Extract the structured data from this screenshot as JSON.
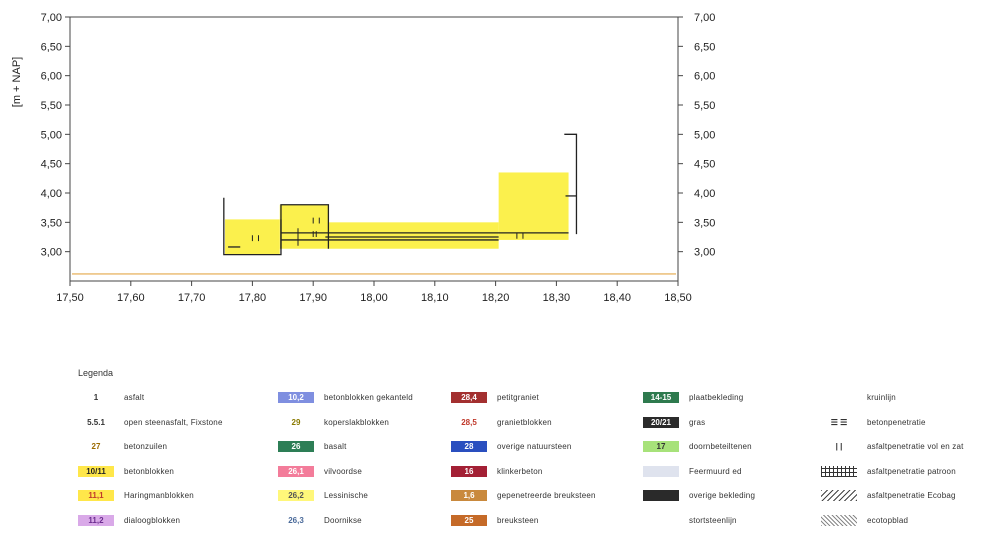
{
  "chart_data": {
    "type": "line",
    "title": "",
    "xlabel": "",
    "ylabel": "[m + NAP]",
    "xlim": [
      17.5,
      18.5
    ],
    "ylim": [
      2.5,
      7.0
    ],
    "x_ticks": [
      "17,50",
      "17,60",
      "17,70",
      "17,80",
      "17,90",
      "18,00",
      "18,10",
      "18,20",
      "18,30",
      "18,40",
      "18,50"
    ],
    "y_ticks_left": [
      "7,00",
      "6,50",
      "6,00",
      "5,50",
      "5,00",
      "4,50",
      "4,00",
      "3,50",
      "3,00"
    ],
    "y_ticks_right": [
      "7,00",
      "6,50",
      "6,00",
      "5,50",
      "5,00",
      "4,50",
      "4,00",
      "3,50",
      "3,00"
    ],
    "yellow_regions": [
      {
        "x": [
          17.755,
          17.845
        ],
        "y": [
          2.95,
          3.55
        ]
      },
      {
        "x": [
          17.845,
          17.925
        ],
        "y": [
          3.05,
          3.8
        ]
      },
      {
        "x": [
          17.925,
          18.205
        ],
        "y": [
          3.05,
          3.5
        ]
      },
      {
        "x": [
          18.205,
          18.32
        ],
        "y": [
          3.2,
          4.35
        ]
      }
    ],
    "profile_lines": [
      {
        "x": [
          17.753,
          17.753,
          17.847,
          17.847
        ],
        "y": [
          3.92,
          2.95,
          2.95,
          3.55
        ]
      },
      {
        "x": [
          17.847,
          17.847,
          17.925,
          17.925
        ],
        "y": [
          3.05,
          3.8,
          3.8,
          3.05
        ]
      },
      {
        "x": [
          17.847,
          18.32
        ],
        "y": [
          3.32,
          3.32
        ]
      },
      {
        "x": [
          17.847,
          18.205
        ],
        "y": [
          3.2,
          3.2
        ]
      },
      {
        "x": [
          17.92,
          18.205
        ],
        "y": [
          3.25,
          3.25
        ]
      },
      {
        "x": [
          18.313,
          18.333,
          18.333
        ],
        "y": [
          5.0,
          5.0,
          3.3
        ]
      },
      {
        "x": [
          18.315,
          18.333
        ],
        "y": [
          3.95,
          3.95
        ]
      },
      {
        "x": [
          17.76,
          17.78
        ],
        "y": [
          3.08,
          3.08
        ]
      }
    ],
    "reference_line": {
      "y": 2.62,
      "color": "#e9b86a"
    }
  },
  "legend": {
    "title": "Legenda",
    "items": [
      {
        "code": "1",
        "label": "asfalt",
        "bg": "#ffffff",
        "fg": "#333333"
      },
      {
        "code": "5.5.1",
        "label": "open steenasfalt, Fixstone",
        "bg": "#ffffff",
        "fg": "#333333"
      },
      {
        "code": "27",
        "label": "betonzuilen",
        "bg": "#ffffff",
        "fg": "#9b6a00"
      },
      {
        "code": "10/11",
        "label": "betonblokken",
        "bg": "#ffe74a",
        "fg": "#222222"
      },
      {
        "code": "11,1",
        "label": "Haringmanblokken",
        "bg": "#ffe74a",
        "fg": "#c0392b"
      },
      {
        "code": "11,2",
        "label": "dialoogblokken",
        "bg": "#d9a9e8",
        "fg": "#6b2c8f"
      },
      {
        "code": "10,2",
        "label": "betonblokken gekanteld",
        "bg": "#7f8fe0",
        "fg": "#ffffff"
      },
      {
        "code": "29",
        "label": "koperslakblokken",
        "bg": "#ffffff",
        "fg": "#8a7a00"
      },
      {
        "code": "26",
        "label": "basalt",
        "bg": "#2d7e56",
        "fg": "#ffffff"
      },
      {
        "code": "26,1",
        "label": "vilvoordse",
        "bg": "#f37c9a",
        "fg": "#ffffff"
      },
      {
        "code": "26,2",
        "label": "Lessinische",
        "bg": "#fff77a",
        "fg": "#555555"
      },
      {
        "code": "26,3",
        "label": "Doornikse",
        "bg": "#ffffff",
        "fg": "#4a6a9a"
      },
      {
        "code": "28,4",
        "label": "petitgraniet",
        "bg": "#a33030",
        "fg": "#ffffff"
      },
      {
        "code": "28,5",
        "label": "granietblokken",
        "bg": "#ffffff",
        "fg": "#c0392b"
      },
      {
        "code": "28",
        "label": "overige natuursteen",
        "bg": "#2a4fbf",
        "fg": "#ffffff"
      },
      {
        "code": "16",
        "label": "klinkerbeton",
        "bg": "#a32035",
        "fg": "#ffffff"
      },
      {
        "code": "1,6",
        "label": "gepenetreerde breuksteen",
        "bg": "#c9893d",
        "fg": "#ffffff"
      },
      {
        "code": "25",
        "label": "breuksteen",
        "bg": "#c56a28",
        "fg": "#ffffff"
      },
      {
        "code": "14-15",
        "label": "plaatbekleding",
        "bg": "#2e7a4e",
        "fg": "#ffffff"
      },
      {
        "code": "20/21",
        "label": "gras",
        "bg": "#2b2b2b",
        "fg": "#ffffff"
      },
      {
        "code": "17",
        "label": "doornbeteiltenen",
        "bg": "#a7e27a",
        "fg": "#333333"
      },
      {
        "code": "",
        "label": "Feermuurd ed",
        "bg": "#dfe3ee",
        "fg": "#333333"
      },
      {
        "code": "",
        "label": "overige bekleding",
        "bg": "#2a2a2a",
        "fg": "#ffffff"
      },
      {
        "code": "",
        "label": "stortsteenlijn",
        "bg": "#ffffff",
        "fg": "#333333"
      },
      {
        "code": "",
        "label": "kruinlijn",
        "bg": "#ffffff",
        "fg": "#333333"
      },
      {
        "code": "",
        "label": "betonpenetratie",
        "bg": "#ffffff",
        "fg": "#333333"
      },
      {
        "code": "",
        "label": "asfaltpenetratie vol en zat",
        "bg": "#ffffff",
        "fg": "#333333"
      },
      {
        "code": "",
        "label": "asfaltpenetratie patroon",
        "bg": "#ffffff",
        "fg": "#333333"
      },
      {
        "code": "",
        "label": "asfaltpenetratie Ecobag",
        "bg": "#ffffff",
        "fg": "#333333"
      },
      {
        "code": "",
        "label": "ecotopblad",
        "bg": "#ffffff",
        "fg": "#333333"
      }
    ]
  }
}
